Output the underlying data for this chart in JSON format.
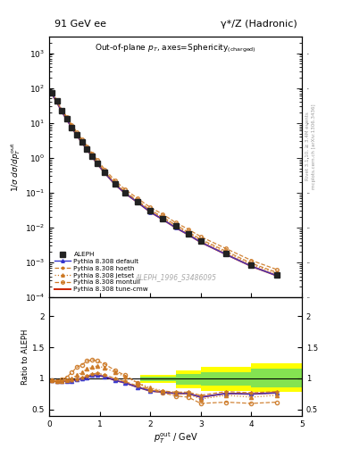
{
  "title_left": "91 GeV ee",
  "title_right": "γ*/Z (Hadronic)",
  "main_title": "Out-of-plane p_{T}, axes=Sphericity (charged)",
  "xlabel": "p_{T}^{out} / GeV",
  "ylabel_main": "1/σ dσ/dp_{T}^{out}",
  "ylabel_ratio": "Ratio to ALEPH",
  "watermark": "ALEPH_1996_S3486095",
  "right_label1": "Rivet 3.1.10, ≥ 3.4M events",
  "right_label2": "mcplots.cern.ch [arXiv:1306.3436]",
  "x_data": [
    0.05,
    0.15,
    0.25,
    0.35,
    0.45,
    0.55,
    0.65,
    0.75,
    0.85,
    0.95,
    1.1,
    1.3,
    1.5,
    1.75,
    2.0,
    2.25,
    2.5,
    2.75,
    3.0,
    3.5,
    4.0,
    4.5
  ],
  "aleph_y": [
    72,
    42,
    22,
    13,
    7.5,
    4.5,
    2.8,
    1.8,
    1.1,
    0.7,
    0.38,
    0.18,
    0.1,
    0.055,
    0.03,
    0.018,
    0.011,
    0.0068,
    0.0042,
    0.0018,
    0.00085,
    0.00045
  ],
  "aleph_yerr": [
    3,
    2,
    1,
    0.6,
    0.35,
    0.2,
    0.12,
    0.08,
    0.05,
    0.03,
    0.015,
    0.008,
    0.004,
    0.0022,
    0.0012,
    0.0007,
    0.0004,
    0.00025,
    0.00015,
    7e-05,
    3e-05,
    1.8e-05
  ],
  "default_y": [
    70,
    40,
    21,
    12.5,
    7.2,
    4.4,
    2.7,
    1.75,
    1.08,
    0.68,
    0.37,
    0.175,
    0.097,
    0.053,
    0.028,
    0.017,
    0.01,
    0.0063,
    0.0038,
    0.0017,
    0.00078,
    0.00042
  ],
  "hoeth_y": [
    74,
    44,
    23,
    14,
    8.0,
    4.9,
    3.0,
    1.95,
    1.2,
    0.76,
    0.41,
    0.195,
    0.108,
    0.059,
    0.032,
    0.02,
    0.012,
    0.0075,
    0.0046,
    0.0021,
    0.00095,
    0.00052
  ],
  "jetset_y": [
    73,
    43,
    22.5,
    13.5,
    7.8,
    4.75,
    2.95,
    1.9,
    1.17,
    0.74,
    0.4,
    0.19,
    0.105,
    0.057,
    0.031,
    0.019,
    0.011,
    0.007,
    0.0043,
    0.0019,
    0.00088,
    0.00048
  ],
  "montull_y": [
    76,
    46,
    24,
    15,
    8.8,
    5.4,
    3.35,
    2.18,
    1.35,
    0.86,
    0.47,
    0.225,
    0.125,
    0.069,
    0.038,
    0.024,
    0.014,
    0.009,
    0.0055,
    0.0025,
    0.00115,
    0.00063
  ],
  "tunecmw_y": [
    70,
    40,
    21,
    12.5,
    7.2,
    4.4,
    2.7,
    1.75,
    1.08,
    0.68,
    0.37,
    0.175,
    0.097,
    0.053,
    0.028,
    0.017,
    0.01,
    0.0063,
    0.0038,
    0.0017,
    0.00078,
    0.00042
  ],
  "ratio_x": [
    0.05,
    0.15,
    0.25,
    0.35,
    0.45,
    0.55,
    0.65,
    0.75,
    0.85,
    0.95,
    1.1,
    1.3,
    1.5,
    1.75,
    2.0,
    2.25,
    2.5,
    2.75,
    3.0,
    3.5,
    4.0,
    4.5
  ],
  "ratio_default": [
    0.97,
    0.95,
    0.96,
    0.96,
    0.96,
    0.98,
    1.0,
    1.02,
    1.05,
    1.05,
    1.03,
    0.97,
    0.93,
    0.86,
    0.8,
    0.78,
    0.76,
    0.76,
    0.7,
    0.76,
    0.75,
    0.77
  ],
  "ratio_hoeth": [
    0.97,
    0.95,
    0.96,
    0.97,
    0.97,
    0.99,
    1.01,
    1.04,
    1.07,
    1.08,
    1.06,
    1.0,
    0.95,
    0.88,
    0.82,
    0.8,
    0.78,
    0.78,
    0.73,
    0.79,
    0.77,
    0.79
  ],
  "ratio_jetset": [
    0.97,
    0.95,
    0.96,
    0.97,
    1.0,
    1.05,
    1.1,
    1.15,
    1.18,
    1.2,
    1.17,
    1.1,
    1.03,
    0.93,
    0.85,
    0.8,
    0.76,
    0.75,
    0.67,
    0.73,
    0.7,
    0.73
  ],
  "ratio_montull": [
    0.97,
    0.96,
    0.98,
    1.02,
    1.1,
    1.18,
    1.22,
    1.28,
    1.3,
    1.28,
    1.23,
    1.13,
    1.05,
    0.93,
    0.82,
    0.77,
    0.72,
    0.7,
    0.6,
    0.62,
    0.6,
    0.62
  ],
  "ratio_tunecmw": [
    0.97,
    0.95,
    0.96,
    0.96,
    0.96,
    0.98,
    1.0,
    1.02,
    1.05,
    1.05,
    1.03,
    0.97,
    0.93,
    0.86,
    0.8,
    0.78,
    0.76,
    0.76,
    0.7,
    0.76,
    0.75,
    0.77
  ],
  "band_x_edges": [
    1.8,
    2.5,
    3.0,
    4.0,
    5.0
  ],
  "band_green_lo": [
    0.96,
    0.9,
    0.88,
    0.86,
    0.86
  ],
  "band_green_hi": [
    1.03,
    1.07,
    1.1,
    1.16,
    1.16
  ],
  "band_yellow_lo": [
    0.93,
    0.84,
    0.8,
    0.78,
    0.78
  ],
  "band_yellow_hi": [
    1.06,
    1.13,
    1.18,
    1.25,
    1.25
  ],
  "color_aleph": "#222222",
  "color_default": "#3333cc",
  "color_hoeth": "#cc7722",
  "color_jetset": "#cc7722",
  "color_montull": "#cc7722",
  "color_tunecmw": "#cc2200",
  "xlim": [
    0,
    5.0
  ],
  "ylim_main_lo": 0.0001,
  "ylim_main_hi": 3000,
  "ylim_ratio_lo": 0.4,
  "ylim_ratio_hi": 2.3
}
